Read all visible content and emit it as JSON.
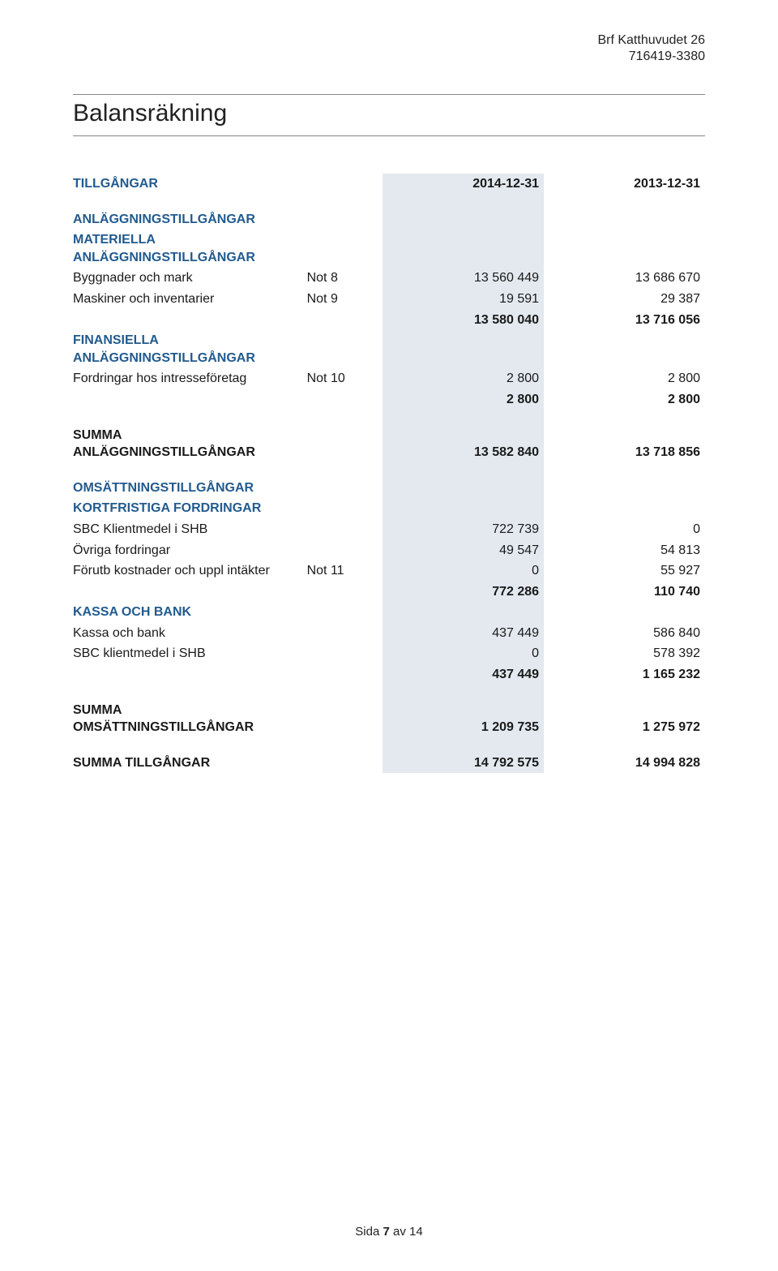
{
  "colors": {
    "section_head": "#225b8f",
    "shade_bg": "#e3e9ef",
    "text": "#1a1a1a",
    "rule": "#888888",
    "background": "#ffffff"
  },
  "fonts": {
    "body_size_pt": 12,
    "title_size_pt": 22,
    "family": "Segoe UI / Helvetica"
  },
  "header": {
    "line1": "Brf Katthuvudet 26",
    "line2": "716419-3380"
  },
  "title": "Balansräkning",
  "columns": {
    "main": "TILLGÅNGAR",
    "year1": "2014-12-31",
    "year2": "2013-12-31"
  },
  "sections": [
    {
      "head": "ANLÄGGNINGSTILLGÅNGAR",
      "groups": [
        {
          "head": "MATERIELLA ANLÄGGNINGSTILLGÅNGAR",
          "rows": [
            {
              "label": "Byggnader och mark",
              "note": "Not 8",
              "y1": "13 560 449",
              "y2": "13 686 670"
            },
            {
              "label": "Maskiner och inventarier",
              "note": "Not 9",
              "y1": "19 591",
              "y2": "29 387"
            }
          ],
          "subtotal": {
            "y1": "13 580 040",
            "y2": "13 716 056"
          }
        },
        {
          "head": "FINANSIELLA ANLÄGGNINGSTILLGÅNGAR",
          "rows": [
            {
              "label": "Fordringar hos intresseföretag",
              "note": "Not 10",
              "y1": "2 800",
              "y2": "2 800"
            }
          ],
          "subtotal": {
            "y1": "2 800",
            "y2": "2 800"
          }
        }
      ],
      "total": {
        "label": "SUMMA ANLÄGGNINGSTILLGÅNGAR",
        "y1": "13 582 840",
        "y2": "13 718 856"
      }
    },
    {
      "head": "OMSÄTTNINGSTILLGÅNGAR",
      "groups": [
        {
          "head": "KORTFRISTIGA FORDRINGAR",
          "rows": [
            {
              "label": "SBC Klientmedel i SHB",
              "note": "",
              "y1": "722 739",
              "y2": "0"
            },
            {
              "label": "Övriga fordringar",
              "note": "",
              "y1": "49 547",
              "y2": "54 813"
            },
            {
              "label": "Förutb kostnader och uppl intäkter",
              "note": "Not 11",
              "y1": "0",
              "y2": "55 927"
            }
          ],
          "subtotal": {
            "y1": "772 286",
            "y2": "110 740"
          }
        },
        {
          "head": "KASSA OCH BANK",
          "rows": [
            {
              "label": "Kassa och bank",
              "note": "",
              "y1": "437 449",
              "y2": "586 840"
            },
            {
              "label": "SBC klientmedel i SHB",
              "note": "",
              "y1": "0",
              "y2": "578 392"
            }
          ],
          "subtotal": {
            "y1": "437 449",
            "y2": "1 165 232"
          }
        }
      ],
      "total": {
        "label": "SUMMA OMSÄTTNINGSTILLGÅNGAR",
        "y1": "1 209 735",
        "y2": "1 275 972"
      }
    }
  ],
  "grand_total": {
    "label": "SUMMA TILLGÅNGAR",
    "y1": "14 792 575",
    "y2": "14 994 828"
  },
  "footer": {
    "prefix": "Sida ",
    "page": "7",
    "middle": " av ",
    "total": "14"
  }
}
